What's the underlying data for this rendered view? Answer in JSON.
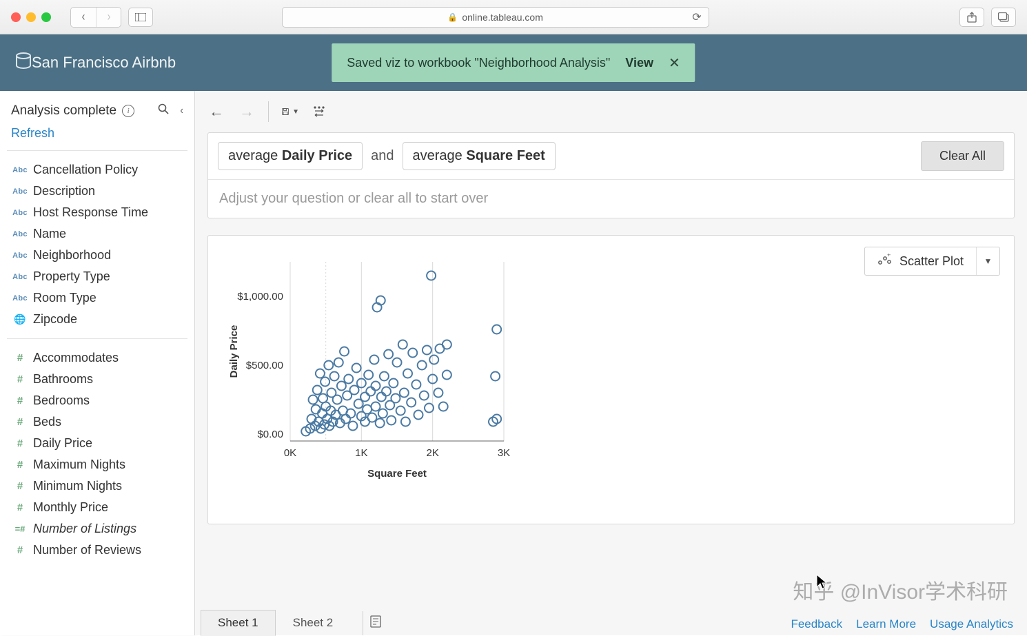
{
  "browser": {
    "url_display": "online.tableau.com",
    "lock": true
  },
  "header": {
    "workbook_title": "San Francisco Airbnb",
    "toast_message": "Saved viz to workbook \"Neighborhood Analysis\"",
    "toast_action": "View"
  },
  "sidebar": {
    "status": "Analysis complete",
    "refresh_label": "Refresh",
    "dimension_fields": [
      {
        "type": "abc",
        "name": "Cancellation Policy"
      },
      {
        "type": "abc",
        "name": "Description"
      },
      {
        "type": "abc",
        "name": "Host Response Time"
      },
      {
        "type": "abc",
        "name": "Name"
      },
      {
        "type": "abc",
        "name": "Neighborhood"
      },
      {
        "type": "abc",
        "name": "Property Type"
      },
      {
        "type": "abc",
        "name": "Room Type"
      },
      {
        "type": "globe",
        "name": "Zipcode"
      }
    ],
    "measure_fields": [
      {
        "type": "hash",
        "name": "Accommodates"
      },
      {
        "type": "hash",
        "name": "Bathrooms"
      },
      {
        "type": "hash",
        "name": "Bedrooms"
      },
      {
        "type": "hash",
        "name": "Beds"
      },
      {
        "type": "hash",
        "name": "Daily Price"
      },
      {
        "type": "hash",
        "name": "Maximum Nights"
      },
      {
        "type": "hash",
        "name": "Minimum Nights"
      },
      {
        "type": "hash",
        "name": "Monthly Price"
      },
      {
        "type": "calc",
        "name": "Number of Listings",
        "italic": true
      },
      {
        "type": "hash",
        "name": "Number of Reviews"
      }
    ]
  },
  "query": {
    "pills": [
      {
        "prefix": "average ",
        "value": "Daily Price"
      },
      {
        "prefix": "average ",
        "value": "Square Feet"
      }
    ],
    "conjunction": "and",
    "clear_all": "Clear All",
    "hint": "Adjust your question or clear all to start over"
  },
  "viz_picker": {
    "label": "Scatter Plot"
  },
  "chart": {
    "type": "scatter",
    "x_label": "Square Feet",
    "y_label": "Daily Price",
    "x_ticks": [
      {
        "v": 0,
        "label": "0K"
      },
      {
        "v": 1000,
        "label": "1K"
      },
      {
        "v": 2000,
        "label": "2K"
      },
      {
        "v": 3000,
        "label": "3K"
      }
    ],
    "y_ticks": [
      {
        "v": 0,
        "label": "$0.00"
      },
      {
        "v": 500,
        "label": "$500.00"
      },
      {
        "v": 1000,
        "label": "$1,000.00"
      }
    ],
    "xlim": [
      0,
      3000
    ],
    "ylim": [
      -50,
      1250
    ],
    "point_color": "#4a7aa3",
    "point_radius": 6.5,
    "point_stroke_width": 2,
    "grid_color": "#d9d9d9",
    "axis_color": "#666666",
    "background": "#ffffff",
    "label_fontsize": 15,
    "tick_fontsize": 15,
    "points": [
      [
        220,
        20
      ],
      [
        280,
        40
      ],
      [
        300,
        110
      ],
      [
        320,
        250
      ],
      [
        350,
        60
      ],
      [
        360,
        180
      ],
      [
        380,
        320
      ],
      [
        400,
        90
      ],
      [
        420,
        440
      ],
      [
        430,
        40
      ],
      [
        450,
        150
      ],
      [
        460,
        260
      ],
      [
        480,
        70
      ],
      [
        490,
        380
      ],
      [
        500,
        200
      ],
      [
        520,
        110
      ],
      [
        540,
        500
      ],
      [
        550,
        60
      ],
      [
        570,
        170
      ],
      [
        580,
        300
      ],
      [
        600,
        90
      ],
      [
        620,
        420
      ],
      [
        640,
        140
      ],
      [
        660,
        250
      ],
      [
        680,
        520
      ],
      [
        700,
        80
      ],
      [
        720,
        350
      ],
      [
        740,
        170
      ],
      [
        760,
        600
      ],
      [
        780,
        110
      ],
      [
        800,
        280
      ],
      [
        820,
        400
      ],
      [
        850,
        150
      ],
      [
        880,
        60
      ],
      [
        900,
        320
      ],
      [
        930,
        480
      ],
      [
        960,
        220
      ],
      [
        1000,
        130
      ],
      [
        1000,
        370
      ],
      [
        1050,
        90
      ],
      [
        1050,
        270
      ],
      [
        1080,
        180
      ],
      [
        1100,
        430
      ],
      [
        1130,
        310
      ],
      [
        1150,
        120
      ],
      [
        1180,
        540
      ],
      [
        1200,
        200
      ],
      [
        1200,
        350
      ],
      [
        1220,
        920
      ],
      [
        1260,
        80
      ],
      [
        1270,
        970
      ],
      [
        1280,
        270
      ],
      [
        1300,
        150
      ],
      [
        1320,
        420
      ],
      [
        1350,
        310
      ],
      [
        1380,
        580
      ],
      [
        1400,
        210
      ],
      [
        1420,
        100
      ],
      [
        1450,
        370
      ],
      [
        1480,
        260
      ],
      [
        1500,
        520
      ],
      [
        1550,
        170
      ],
      [
        1580,
        650
      ],
      [
        1600,
        300
      ],
      [
        1620,
        90
      ],
      [
        1650,
        440
      ],
      [
        1700,
        230
      ],
      [
        1720,
        590
      ],
      [
        1770,
        360
      ],
      [
        1800,
        140
      ],
      [
        1850,
        500
      ],
      [
        1880,
        280
      ],
      [
        1920,
        610
      ],
      [
        1950,
        190
      ],
      [
        1980,
        1150
      ],
      [
        2000,
        400
      ],
      [
        2020,
        540
      ],
      [
        2080,
        300
      ],
      [
        2100,
        620
      ],
      [
        2150,
        200
      ],
      [
        2200,
        430
      ],
      [
        2200,
        650
      ],
      [
        2850,
        90
      ],
      [
        2880,
        420
      ],
      [
        2900,
        760
      ],
      [
        2900,
        110
      ]
    ]
  },
  "sheets": {
    "tabs": [
      "Sheet 1",
      "Sheet 2"
    ],
    "active_index": 0
  },
  "footer": {
    "links": [
      "Feedback",
      "Learn More",
      "Usage Analytics"
    ]
  },
  "watermark": "知乎 @InVisor学术科研"
}
